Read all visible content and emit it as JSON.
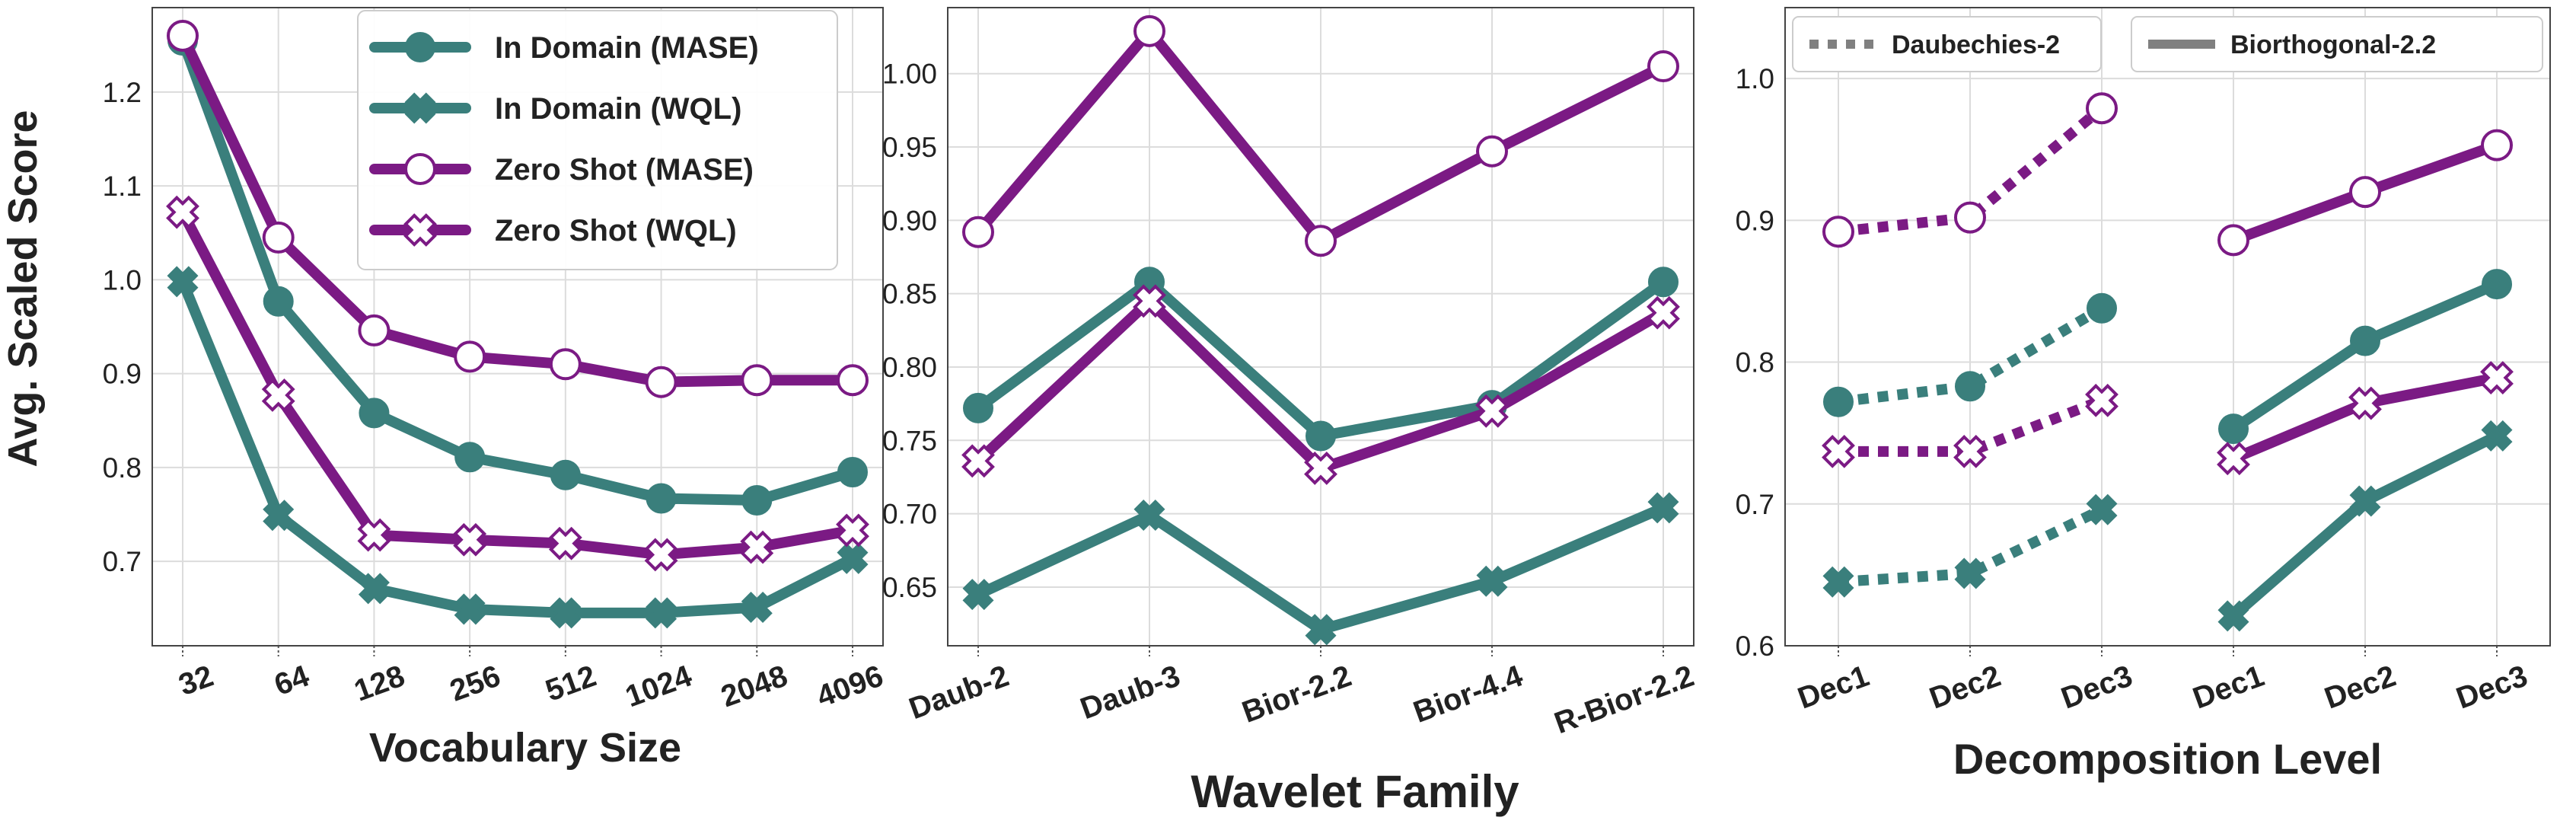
{
  "colors": {
    "teal": "#3a7f7c",
    "purple": "#7b1a84",
    "gray": "#808080"
  },
  "chart_data": [
    {
      "type": "line",
      "xlabel": "Vocabulary Size",
      "ylabel": "Avg. Scaled Score",
      "categories": [
        "32",
        "64",
        "128",
        "256",
        "512",
        "1024",
        "2048",
        "4096"
      ],
      "ylim": [
        0.61,
        1.29
      ],
      "yticks": [
        "0.7",
        "0.8",
        "0.9",
        "1.0",
        "1.1",
        "1.2"
      ],
      "legend_position": "top-right",
      "series": [
        {
          "name": "In Domain (MASE)",
          "color": "teal",
          "marker": "filled-circle",
          "values": [
            1.255,
            0.977,
            0.858,
            0.811,
            0.792,
            0.767,
            0.765,
            0.795
          ]
        },
        {
          "name": "In Domain (WQL)",
          "color": "teal",
          "marker": "filled-x",
          "values": [
            0.998,
            0.749,
            0.671,
            0.649,
            0.645,
            0.645,
            0.651,
            0.703
          ]
        },
        {
          "name": "Zero Shot (MASE)",
          "color": "purple",
          "marker": "open-circle",
          "values": [
            1.26,
            1.045,
            0.946,
            0.918,
            0.91,
            0.891,
            0.893,
            0.893
          ]
        },
        {
          "name": "Zero Shot (WQL)",
          "color": "purple",
          "marker": "open-x",
          "values": [
            1.072,
            0.877,
            0.728,
            0.723,
            0.719,
            0.707,
            0.715,
            0.733
          ]
        }
      ]
    },
    {
      "type": "line",
      "xlabel": "Wavelet Family",
      "ylabel": "",
      "categories": [
        "Daub-2",
        "Daub-3",
        "Bior-2.2",
        "Bior-4.4",
        "R-Bior-2.2"
      ],
      "ylim": [
        0.61,
        1.045
      ],
      "yticks": [
        "0.65",
        "0.70",
        "0.75",
        "0.80",
        "0.85",
        "0.90",
        "0.95",
        "1.00"
      ],
      "series": [
        {
          "color": "teal",
          "marker": "filled-circle",
          "values": [
            0.772,
            0.858,
            0.753,
            0.774,
            0.858
          ]
        },
        {
          "color": "teal",
          "marker": "filled-x",
          "values": [
            0.645,
            0.699,
            0.621,
            0.654,
            0.704
          ]
        },
        {
          "color": "purple",
          "marker": "open-circle",
          "values": [
            0.892,
            1.029,
            0.886,
            0.947,
            1.005
          ]
        },
        {
          "color": "purple",
          "marker": "open-x",
          "values": [
            0.736,
            0.845,
            0.731,
            0.77,
            0.837
          ]
        }
      ]
    },
    {
      "type": "line",
      "xlabel": "Decomposition Level",
      "ylabel": "",
      "categories": [
        "Dec1",
        "Dec2",
        "Dec3",
        "Dec1",
        "Dec2",
        "Dec3"
      ],
      "ylim": [
        0.6,
        1.05
      ],
      "yticks": [
        "0.6",
        "0.7",
        "0.8",
        "0.9",
        "1.0"
      ],
      "legend_position": "top",
      "style_legend": [
        {
          "name": "Daubechies-2",
          "dash": "dotted"
        },
        {
          "name": "Biorthogonal-2.2",
          "dash": "solid"
        }
      ],
      "groups": [
        {
          "name": "Daubechies-2",
          "dash": "dotted",
          "series": [
            {
              "color": "teal",
              "marker": "filled-circle",
              "values": [
                0.772,
                0.783,
                0.838
              ]
            },
            {
              "color": "teal",
              "marker": "filled-x",
              "values": [
                0.645,
                0.651,
                0.696
              ]
            },
            {
              "color": "purple",
              "marker": "open-circle",
              "values": [
                0.892,
                0.902,
                0.979
              ]
            },
            {
              "color": "purple",
              "marker": "open-x",
              "values": [
                0.737,
                0.737,
                0.773
              ]
            }
          ]
        },
        {
          "name": "Biorthogonal-2.2",
          "dash": "solid",
          "series": [
            {
              "color": "teal",
              "marker": "filled-circle",
              "values": [
                0.753,
                0.815,
                0.855
              ]
            },
            {
              "color": "teal",
              "marker": "filled-x",
              "values": [
                0.621,
                0.702,
                0.748
              ]
            },
            {
              "color": "purple",
              "marker": "open-circle",
              "values": [
                0.886,
                0.92,
                0.953
              ]
            },
            {
              "color": "purple",
              "marker": "open-x",
              "values": [
                0.732,
                0.771,
                0.789
              ]
            }
          ]
        }
      ]
    }
  ]
}
